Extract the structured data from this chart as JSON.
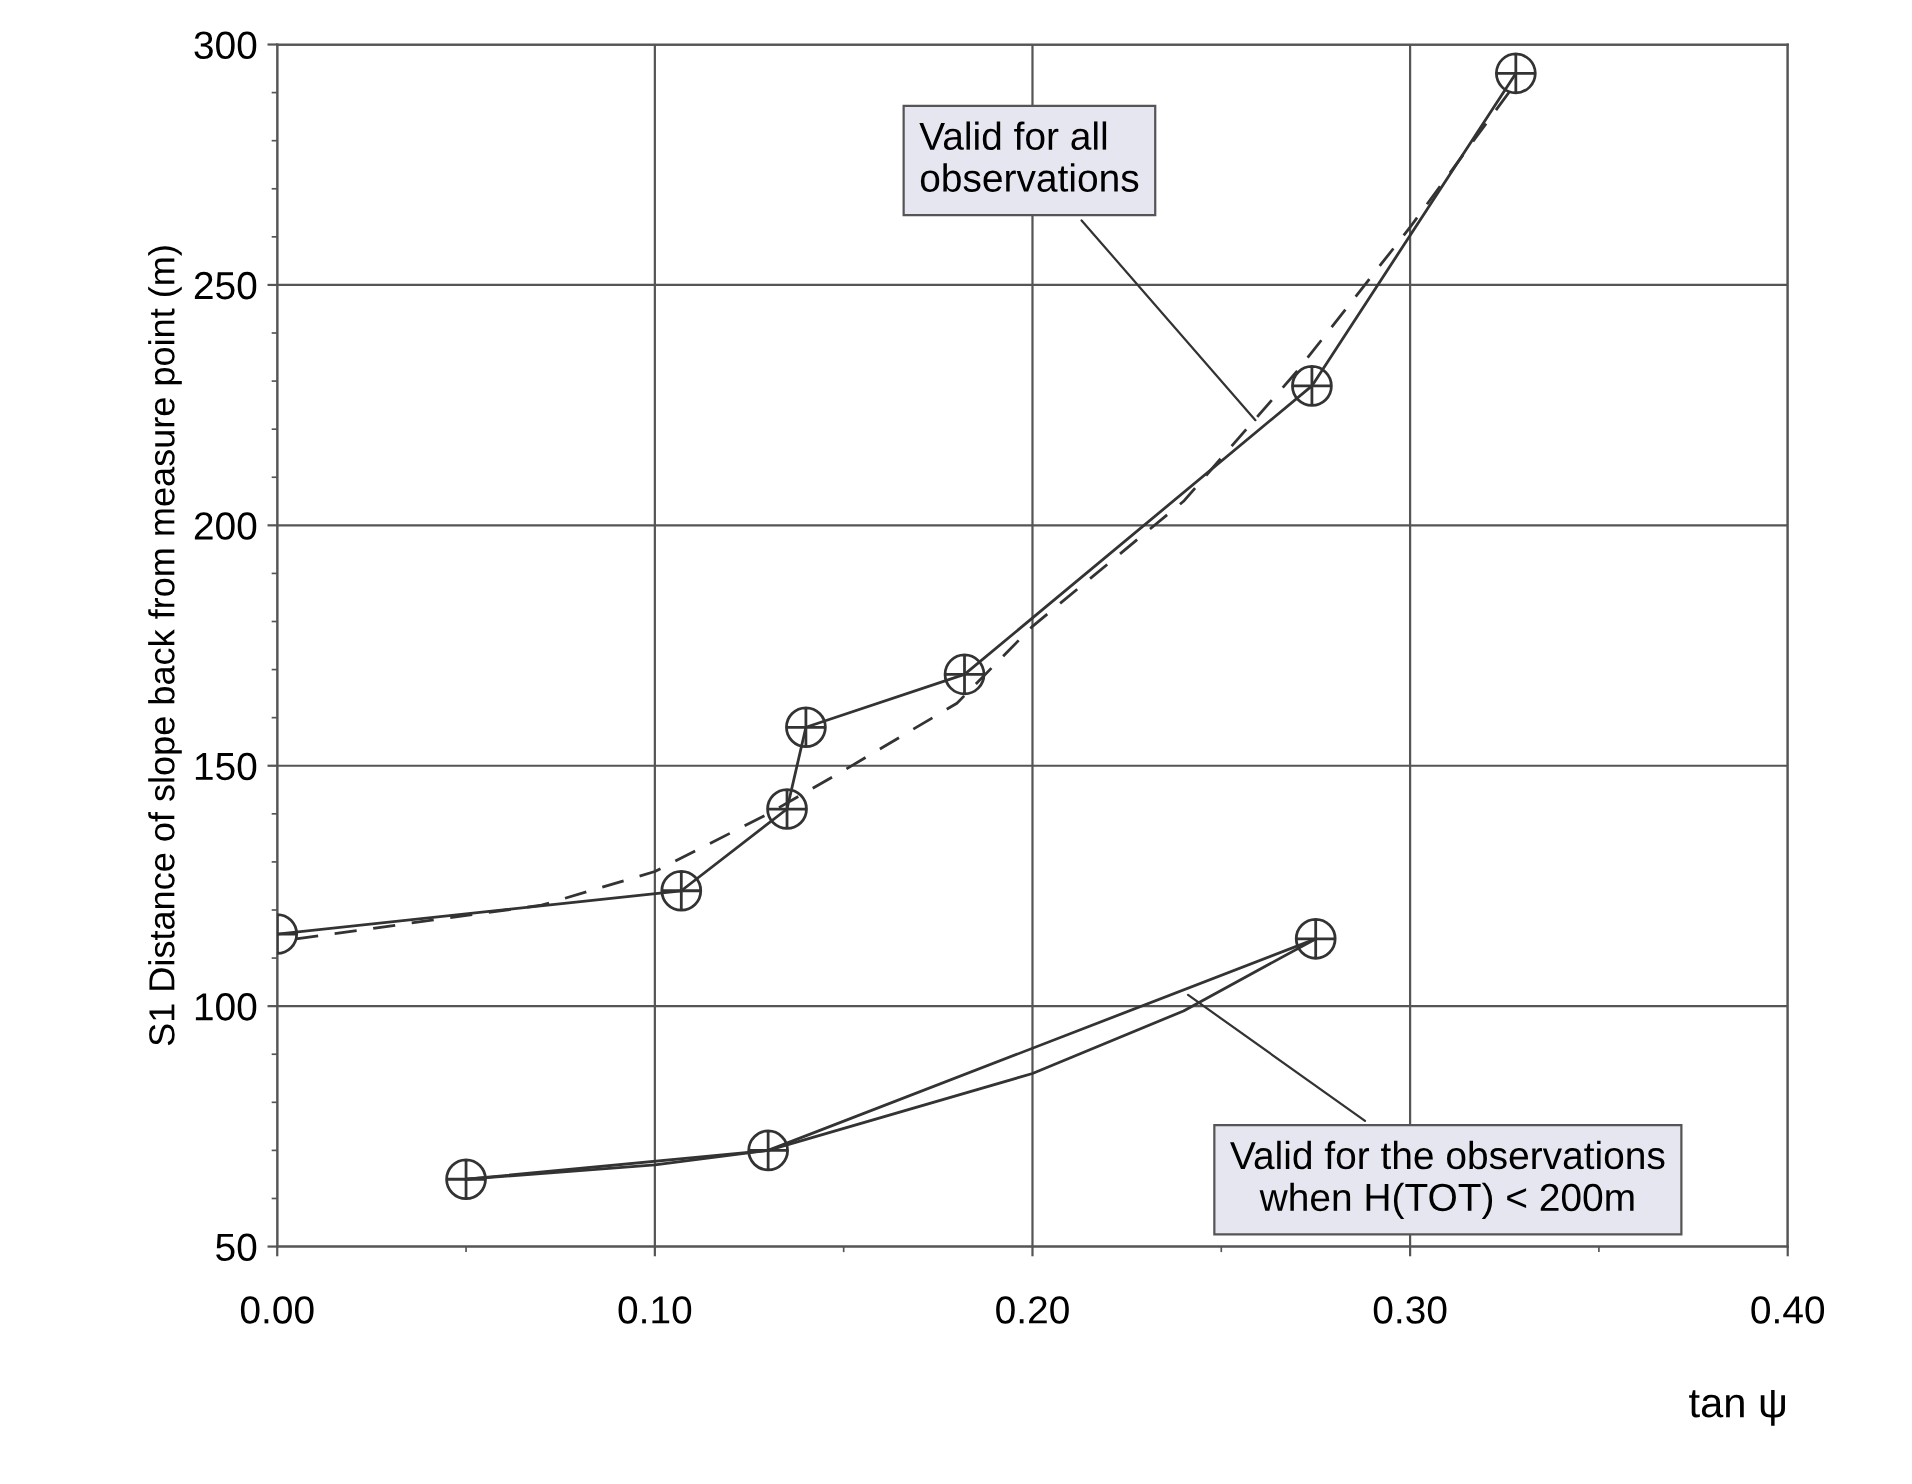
{
  "chart_data": {
    "type": "line",
    "xlabel": "tan ψ",
    "ylabel": "S1 Distance of slope back from measure point (m)",
    "xlim": [
      0,
      0.4
    ],
    "ylim": [
      50,
      300
    ],
    "xticks": [
      {
        "value": 0,
        "label": "0.00"
      },
      {
        "value": 0.1,
        "label": "0.10"
      },
      {
        "value": 0.2,
        "label": "0.20"
      },
      {
        "value": 0.3,
        "label": "0.30"
      },
      {
        "value": 0.4,
        "label": "0.40"
      }
    ],
    "yticks": [
      50,
      100,
      150,
      200,
      250,
      300
    ],
    "grid": true,
    "legend": false,
    "series": [
      {
        "color": "#333333",
        "marker": "cross",
        "line_style": "solid",
        "x": [
          0,
          0.107,
          0.135,
          0.14,
          0.182,
          0.274,
          0.328
        ],
        "values": [
          115,
          124,
          141,
          158,
          169,
          229,
          294
        ]
      },
      {
        "color": "#333333",
        "marker": "none",
        "line_style": "dashed",
        "x": [
          0.005,
          0.07,
          0.1,
          0.13,
          0.15,
          0.18,
          0.2,
          0.24,
          0.27,
          0.3,
          0.328
        ],
        "values": [
          114,
          121,
          128,
          140,
          149,
          163,
          179,
          205,
          232,
          262,
          292
        ]
      },
      {
        "color": "#333333",
        "marker": "cross",
        "line_style": "solid",
        "x": [
          0.05,
          0.13,
          0.275
        ],
        "values": [
          64,
          70,
          114
        ]
      },
      {
        "color": "#333333",
        "marker": "none",
        "line_style": "solid",
        "x": [
          0.05,
          0.1,
          0.13,
          0.2,
          0.24,
          0.275
        ],
        "values": [
          64,
          67,
          70,
          86,
          99,
          114
        ]
      }
    ],
    "annotations": [
      {
        "text": "Valid for all\nobservations",
        "x": 0.26,
        "y": 221
      },
      {
        "text": "Valid for the observations\nwhen H(TOT) < 200m",
        "x": 0.24,
        "y": 103
      }
    ]
  }
}
